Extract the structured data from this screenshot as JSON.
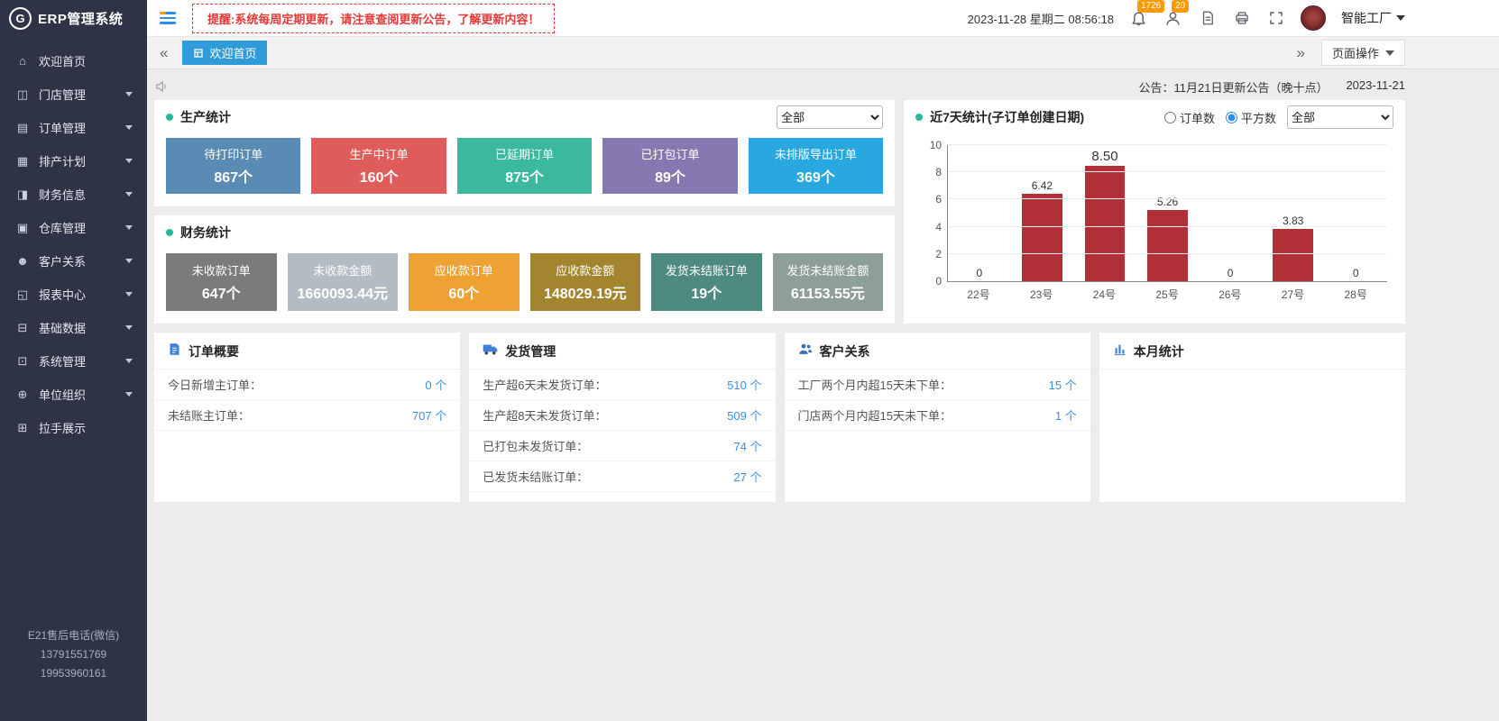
{
  "app": {
    "logo_text": "ERP管理系统",
    "account": "智能工厂"
  },
  "topbar": {
    "alert": "提醒:系统每周定期更新，请注意查阅更新公告，了解更新内容！",
    "datetime": "2023-11-28 星期二 08:56:18",
    "bell_badge": "1726",
    "user_badge": "20"
  },
  "tabbar": {
    "collapse_left": "«",
    "collapse_right": "»",
    "active_tab": "欢迎首页",
    "page_ops": "页面操作"
  },
  "announcement": {
    "label": "公告：11月21日更新公告（晚十点）",
    "date": "2023-11-21"
  },
  "sidebar": {
    "items": [
      {
        "label": "欢迎首页",
        "glyph": "⌂",
        "has_children": false
      },
      {
        "label": "门店管理",
        "glyph": "◫",
        "has_children": true
      },
      {
        "label": "订单管理",
        "glyph": "▤",
        "has_children": true
      },
      {
        "label": "排产计划",
        "glyph": "▦",
        "has_children": true
      },
      {
        "label": "财务信息",
        "glyph": "◨",
        "has_children": true
      },
      {
        "label": "仓库管理",
        "glyph": "▣",
        "has_children": true
      },
      {
        "label": "客户关系",
        "glyph": "☻",
        "has_children": true
      },
      {
        "label": "报表中心",
        "glyph": "◱",
        "has_children": true
      },
      {
        "label": "基础数据",
        "glyph": "⊟",
        "has_children": true
      },
      {
        "label": "系统管理",
        "glyph": "⊡",
        "has_children": true
      },
      {
        "label": "单位组织",
        "glyph": "⊕",
        "has_children": true
      },
      {
        "label": "拉手展示",
        "glyph": "⊞",
        "has_children": false
      }
    ],
    "footer": [
      "E21售后电话(微信)",
      "13791551769",
      "19953960161"
    ]
  },
  "production": {
    "title": "生产统计",
    "filter": "全部",
    "cards": [
      {
        "label": "待打印订单",
        "value": "867个",
        "color": "#5a8bb5"
      },
      {
        "label": "生产中订单",
        "value": "160个",
        "color": "#e05c5b"
      },
      {
        "label": "已延期订单",
        "value": "875个",
        "color": "#3bb99f"
      },
      {
        "label": "已打包订单",
        "value": "89个",
        "color": "#8878b1"
      },
      {
        "label": "未排版导出订单",
        "value": "369个",
        "color": "#29a7e1"
      }
    ]
  },
  "finance": {
    "title": "财务统计",
    "cards": [
      {
        "label": "未收款订单",
        "value": "647个",
        "color": "#7b7b7b"
      },
      {
        "label": "未收款金额",
        "value": "1660093.44元",
        "color": "#b3bcc4"
      },
      {
        "label": "应收款订单",
        "value": "60个",
        "color": "#efa234"
      },
      {
        "label": "应收款金额",
        "value": "148029.19元",
        "color": "#a3842f"
      },
      {
        "label": "发货未结账订单",
        "value": "19个",
        "color": "#4e8a80"
      },
      {
        "label": "发货未结账金额",
        "value": "61153.55元",
        "color": "#8e9e99"
      }
    ]
  },
  "chart_panel": {
    "title": "近7天统计(子订单创建日期)",
    "radio_order": "订单数",
    "radio_square": "平方数",
    "filter": "全部"
  },
  "chart_data": {
    "type": "bar",
    "title": "近7天统计(子订单创建日期)",
    "categories": [
      "22号",
      "23号",
      "24号",
      "25号",
      "26号",
      "27号",
      "28号"
    ],
    "values": [
      0,
      6.42,
      8.5,
      5.26,
      0,
      3.83,
      0
    ],
    "labels": [
      "0",
      "6.42",
      "8.50",
      "5.26",
      "0",
      "3.83",
      "0"
    ],
    "ylim": [
      0,
      10
    ],
    "yticks": [
      0,
      2,
      4,
      6,
      8,
      10
    ],
    "bar_color": "#b13038",
    "grid": true,
    "legend_position": "none",
    "selected_series": "平方数",
    "xlabel": "",
    "ylabel": ""
  },
  "summary_panels": [
    {
      "title": "订单概要",
      "rows": [
        {
          "label": "今日新增主订单：",
          "value": "0 个"
        },
        {
          "label": "未结账主订单：",
          "value": "707 个"
        }
      ]
    },
    {
      "title": "发货管理",
      "rows": [
        {
          "label": "生产超6天未发货订单：",
          "value": "510 个"
        },
        {
          "label": "生产超8天未发货订单：",
          "value": "509 个"
        },
        {
          "label": "已打包未发货订单：",
          "value": "74 个"
        },
        {
          "label": "已发货未结账订单：",
          "value": "27 个"
        }
      ]
    },
    {
      "title": "客户关系",
      "rows": [
        {
          "label": "工厂两个月内超15天未下单：",
          "value": "15 个"
        },
        {
          "label": "门店两个月内超15天未下单：",
          "value": "1 个"
        }
      ]
    },
    {
      "title": "本月统计",
      "rows": []
    }
  ],
  "colors": {
    "sidebar_bg": "#2e3446",
    "accent_blue": "#2d8cf0",
    "tab_active": "#2f9bd8",
    "alert_red": "#e03a3a",
    "badge_orange": "#ff9900",
    "panel_dot": "#26b99a",
    "value_blue": "#3a8ee6",
    "bar_red": "#b13038"
  }
}
